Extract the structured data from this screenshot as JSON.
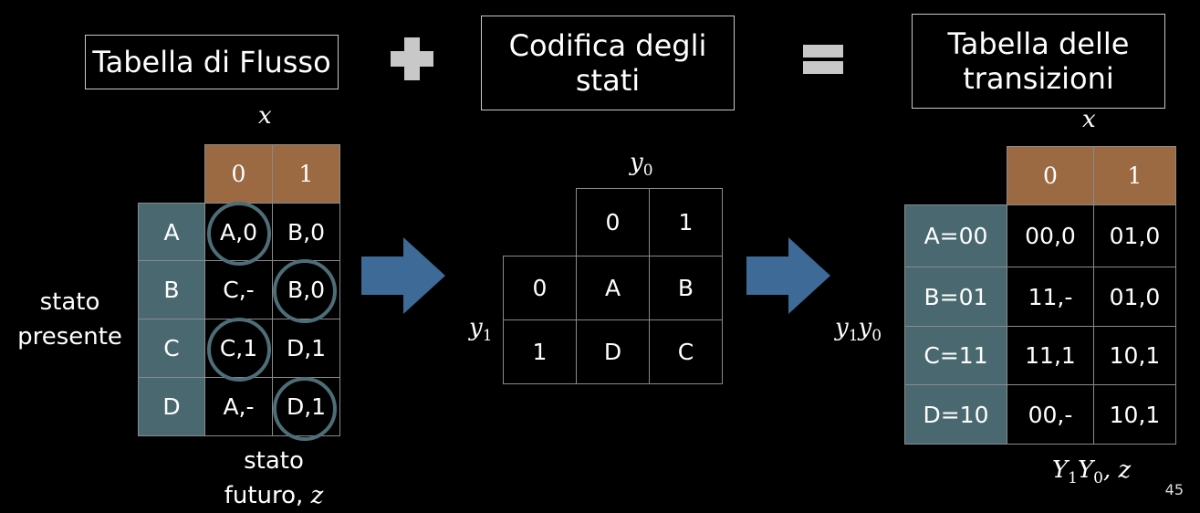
{
  "titles": {
    "flow_table": "Tabella di Flusso",
    "state_coding_line1": "Codifica degli",
    "state_coding_line2": "stati",
    "transition_table_line1": "Tabella delle",
    "transition_table_line2": "transizioni"
  },
  "flow_table": {
    "input_label": "x",
    "col_headers": [
      "0",
      "1"
    ],
    "rows": [
      {
        "state": "A",
        "cells": [
          "A,0",
          "B,0"
        ]
      },
      {
        "state": "B",
        "cells": [
          "C,-",
          "B,0"
        ]
      },
      {
        "state": "C",
        "cells": [
          "C,1",
          "D,1"
        ]
      },
      {
        "state": "D",
        "cells": [
          "A,-",
          "D,1"
        ]
      }
    ],
    "row_label_line1": "stato",
    "row_label_line2": "presente",
    "bottom_label_line1": "stato",
    "bottom_label_line2": "futuro, ",
    "bottom_label_var": "z"
  },
  "coding": {
    "col_var": "y",
    "col_var_sub": "0",
    "row_var": "y",
    "row_var_sub": "1",
    "col_headers": [
      "0",
      "1"
    ],
    "rows": [
      {
        "label": "0",
        "cells": [
          "A",
          "B"
        ]
      },
      {
        "label": "1",
        "cells": [
          "D",
          "C"
        ]
      }
    ]
  },
  "transition_table": {
    "input_label": "x",
    "col_headers": [
      "0",
      "1"
    ],
    "row_var_a": "y",
    "row_var_a_sub": "1",
    "row_var_b": "y",
    "row_var_b_sub": "0",
    "rows": [
      {
        "state": "A=00",
        "cells": [
          "00,0",
          "01,0"
        ]
      },
      {
        "state": "B=01",
        "cells": [
          "11,-",
          "01,0"
        ]
      },
      {
        "state": "C=11",
        "cells": [
          "11,1",
          "10,1"
        ]
      },
      {
        "state": "D=10",
        "cells": [
          "00,-",
          "10,1"
        ]
      }
    ],
    "out_a": "Y",
    "out_a_sub": "1",
    "out_b": "Y",
    "out_b_sub": "0",
    "out_c": ", z"
  },
  "page_number": "45",
  "colors": {
    "header_fill": "#9b6a43",
    "row_fill": "#4a6870",
    "arrow_fill": "#3d6a96",
    "circle_stroke": "#4d6d77"
  }
}
